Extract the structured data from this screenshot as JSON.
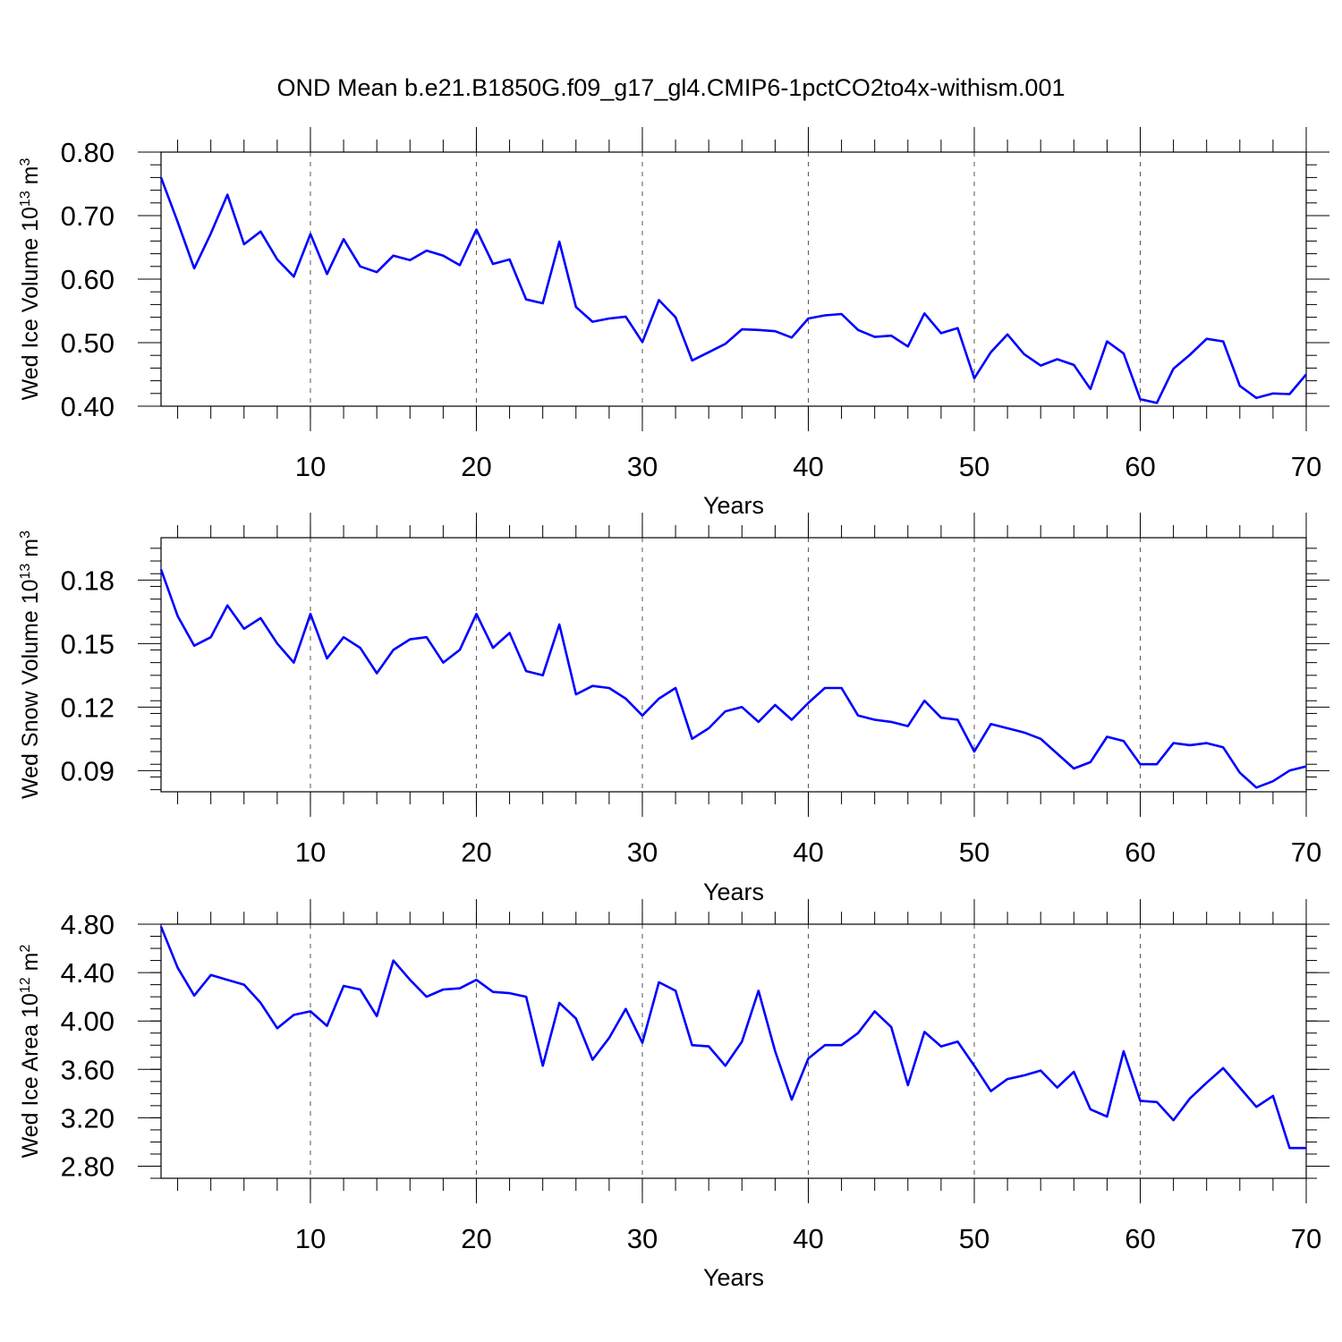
{
  "title": "OND Mean b.e21.B1850G.f09_g17_gl4.CMIP6-1pctCO2to4x-withism.001",
  "colors": {
    "line": "#0000ff",
    "frame": "#000000",
    "grid": "#555555"
  },
  "chart_data": [
    {
      "type": "line",
      "xlabel": "Years",
      "ylabel": {
        "base": "Wed Ice Volume 10",
        "exp": "13",
        "unit": " m",
        "unit_exp": "3"
      },
      "xlim": [
        1,
        70
      ],
      "ylim": [
        0.4,
        0.8
      ],
      "y_minor_min": 0.4,
      "y_minor_step": 0.02,
      "x_ticks": [
        10,
        20,
        30,
        40,
        50,
        60,
        70
      ],
      "x_tick_labels": [
        "10",
        "20",
        "30",
        "40",
        "50",
        "60",
        "70"
      ],
      "y_ticks": [
        0.4,
        0.5,
        0.6,
        0.7,
        0.8
      ],
      "y_tick_labels": [
        "0.40",
        "0.50",
        "0.60",
        "0.70",
        "0.80"
      ],
      "grid": "dashed vertical at major x ticks",
      "series": [
        {
          "values": [
            0.76,
            0.69,
            0.617,
            0.672,
            0.733,
            0.655,
            0.675,
            0.631,
            0.604,
            0.671,
            0.608,
            0.663,
            0.62,
            0.611,
            0.637,
            0.63,
            0.645,
            0.637,
            0.622,
            0.678,
            0.624,
            0.631,
            0.568,
            0.562,
            0.659,
            0.556,
            0.533,
            0.538,
            0.541,
            0.501,
            0.567,
            0.54,
            0.472,
            0.485,
            0.498,
            0.521,
            0.52,
            0.518,
            0.508,
            0.538,
            0.543,
            0.545,
            0.52,
            0.509,
            0.511,
            0.494,
            0.546,
            0.515,
            0.523,
            0.444,
            0.485,
            0.513,
            0.482,
            0.464,
            0.474,
            0.465,
            0.427,
            0.502,
            0.483,
            0.411,
            0.405,
            0.459,
            0.481,
            0.506,
            0.502,
            0.432,
            0.413,
            0.42,
            0.419,
            0.45
          ]
        }
      ]
    },
    {
      "type": "line",
      "xlabel": "Years",
      "ylabel": {
        "base": "Wed Snow Volume 10",
        "exp": "13",
        "unit": " m",
        "unit_exp": "3"
      },
      "xlim": [
        1,
        70
      ],
      "ylim": [
        0.08,
        0.2
      ],
      "y_minor_min": 0.081,
      "y_minor_step": 0.006,
      "x_ticks": [
        10,
        20,
        30,
        40,
        50,
        60,
        70
      ],
      "x_tick_labels": [
        "10",
        "20",
        "30",
        "40",
        "50",
        "60",
        "70"
      ],
      "y_ticks": [
        0.09,
        0.12,
        0.15,
        0.18
      ],
      "y_tick_labels": [
        "0.09",
        "0.12",
        "0.15",
        "0.18"
      ],
      "grid": "dashed vertical at major x ticks",
      "series": [
        {
          "values": [
            0.185,
            0.163,
            0.149,
            0.153,
            0.168,
            0.157,
            0.162,
            0.15,
            0.141,
            0.164,
            0.143,
            0.153,
            0.148,
            0.136,
            0.147,
            0.152,
            0.153,
            0.141,
            0.147,
            0.164,
            0.148,
            0.155,
            0.137,
            0.135,
            0.159,
            0.126,
            0.13,
            0.129,
            0.124,
            0.116,
            0.124,
            0.129,
            0.105,
            0.11,
            0.118,
            0.12,
            0.113,
            0.121,
            0.114,
            0.122,
            0.129,
            0.129,
            0.116,
            0.114,
            0.113,
            0.111,
            0.123,
            0.115,
            0.114,
            0.099,
            0.112,
            0.11,
            0.108,
            0.105,
            0.098,
            0.091,
            0.094,
            0.106,
            0.104,
            0.093,
            0.093,
            0.103,
            0.102,
            0.103,
            0.101,
            0.089,
            0.082,
            0.085,
            0.09,
            0.092
          ]
        }
      ]
    },
    {
      "type": "line",
      "xlabel": "Years",
      "ylabel": {
        "base": "Wed Ice Area 10",
        "exp": "12",
        "unit": " m",
        "unit_exp": "2"
      },
      "xlim": [
        1,
        70
      ],
      "ylim": [
        2.7,
        4.8
      ],
      "y_minor_min": 2.7,
      "y_minor_step": 0.1,
      "x_ticks": [
        10,
        20,
        30,
        40,
        50,
        60,
        70
      ],
      "x_tick_labels": [
        "10",
        "20",
        "30",
        "40",
        "50",
        "60",
        "70"
      ],
      "y_ticks": [
        2.8,
        3.2,
        3.6,
        4.0,
        4.4,
        4.8
      ],
      "y_tick_labels": [
        "2.80",
        "3.20",
        "3.60",
        "4.00",
        "4.40",
        "4.80"
      ],
      "grid": "dashed vertical at major x ticks",
      "series": [
        {
          "values": [
            4.78,
            4.44,
            4.21,
            4.38,
            4.34,
            4.3,
            4.15,
            3.94,
            4.05,
            4.08,
            3.96,
            4.29,
            4.26,
            4.04,
            4.5,
            4.34,
            4.2,
            4.26,
            4.27,
            4.34,
            4.24,
            4.23,
            4.2,
            3.63,
            4.15,
            4.02,
            3.68,
            3.86,
            4.1,
            3.82,
            4.32,
            4.25,
            3.8,
            3.79,
            3.63,
            3.83,
            4.25,
            3.75,
            3.35,
            3.69,
            3.8,
            3.8,
            3.9,
            4.08,
            3.95,
            3.47,
            3.91,
            3.79,
            3.83,
            3.63,
            3.42,
            3.52,
            3.55,
            3.59,
            3.45,
            3.58,
            3.27,
            3.21,
            3.75,
            3.34,
            3.33,
            3.18,
            3.36,
            3.49,
            3.61,
            3.45,
            3.29,
            3.38,
            2.95,
            2.95
          ]
        }
      ]
    }
  ]
}
